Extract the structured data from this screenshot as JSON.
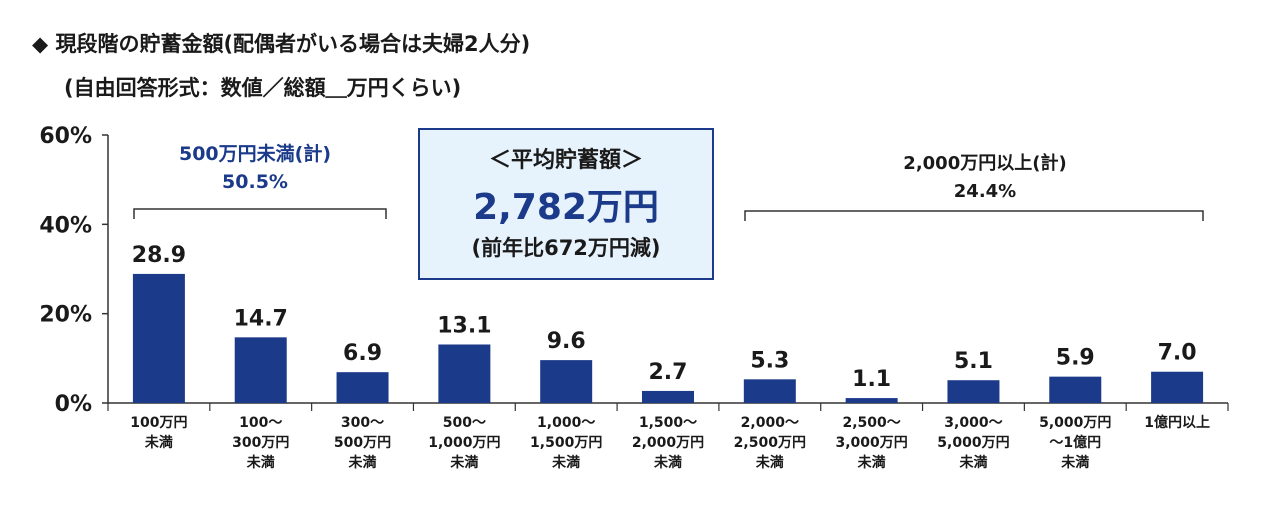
{
  "header": {
    "line1": "◆ 現段階の貯蓄金額(配偶者がいる場合は夫婦2人分)",
    "line2": "(自由回答形式：数値／総額＿万円くらい)"
  },
  "callout": {
    "label": "＜平均貯蓄額＞",
    "value": "2,782万円",
    "note": "(前年比672万円減)"
  },
  "groups": {
    "left": {
      "label": "500万円未満(計)",
      "value": "50.5%"
    },
    "right": {
      "label": "2,000万円以上(計)",
      "value": "24.4%"
    }
  },
  "colors": {
    "bar": "#1b3a8a",
    "group_left_text": "#1b3a8a",
    "callout_border": "#1b3a8a",
    "callout_bg": "#e6f2fc"
  },
  "chart_data": {
    "type": "bar",
    "categories": [
      "100万円\n未満",
      "100～\n300万円\n未満",
      "300～\n500万円\n未満",
      "500～\n1,000万円\n未満",
      "1,000～\n1,500万円\n未満",
      "1,500～\n2,000万円\n未満",
      "2,000～\n2,500万円\n未満",
      "2,500～\n3,000万円\n未満",
      "3,000～\n5,000万円\n未満",
      "5,000万円\n～1億円\n未満",
      "1億円以上"
    ],
    "values": [
      28.9,
      14.7,
      6.9,
      13.1,
      9.6,
      2.7,
      5.3,
      1.1,
      5.1,
      5.9,
      7.0
    ],
    "value_labels": [
      "28.9",
      "14.7",
      "6.9",
      "13.1",
      "9.6",
      "2.7",
      "5.3",
      "1.1",
      "5.1",
      "5.9",
      "7.0"
    ],
    "y_ticks": [
      0,
      20,
      40,
      60
    ],
    "y_tick_labels": [
      "0%",
      "20%",
      "40%",
      "60%"
    ],
    "ylim": [
      0,
      60
    ],
    "title": "",
    "xlabel": "",
    "ylabel": "",
    "grid": false,
    "legend": "none"
  }
}
